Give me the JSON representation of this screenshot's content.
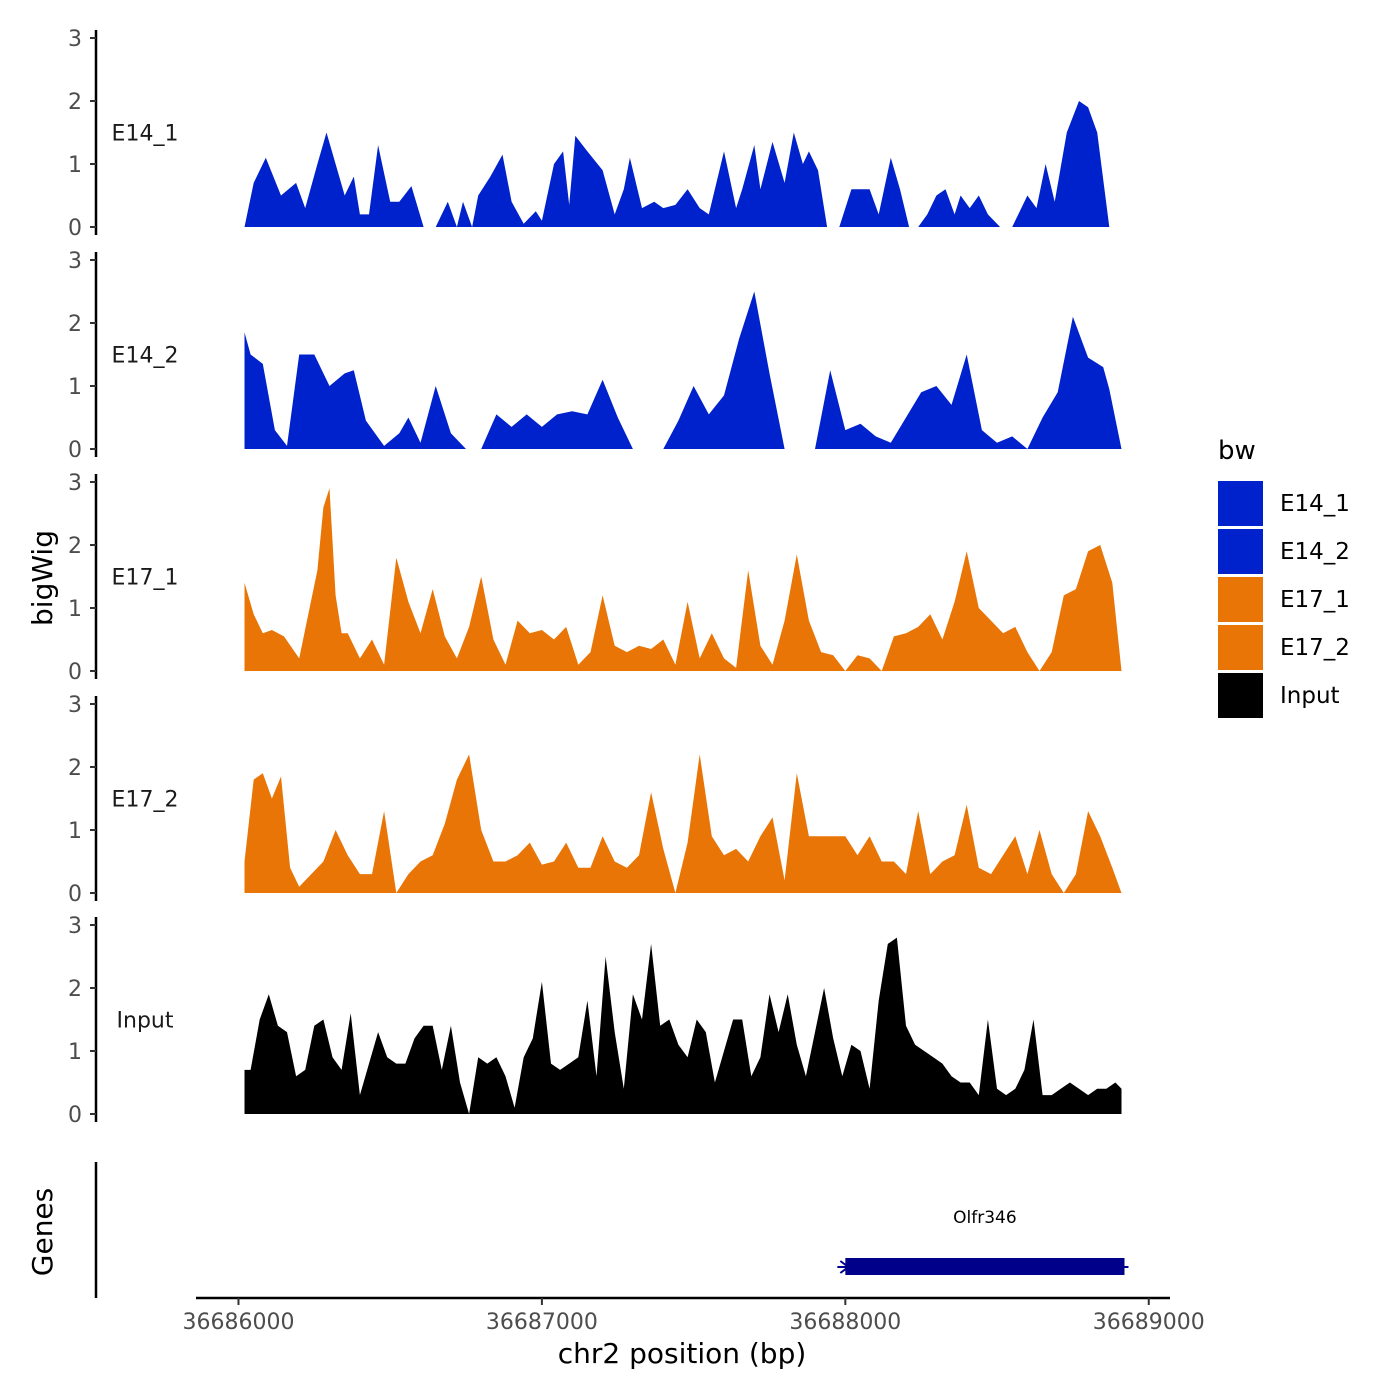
{
  "chart_data": {
    "type": "area",
    "ylabel": "bigWig",
    "xlabel": "chr2 position (bp)",
    "xlim": [
      36685860,
      36689070
    ],
    "ylim": [
      0,
      3
    ],
    "yticks": [
      0,
      1,
      2,
      3
    ],
    "xticks": [
      36686000,
      36687000,
      36688000,
      36689000
    ],
    "xtick_labels": [
      "36686000",
      "36687000",
      "36688000",
      "36689000"
    ],
    "legend": {
      "title": "bw",
      "position": "right",
      "entries": [
        {
          "label": "E14_1",
          "color": "#0022CC"
        },
        {
          "label": "E14_2",
          "color": "#0022CC"
        },
        {
          "label": "E17_1",
          "color": "#E87506"
        },
        {
          "label": "E17_2",
          "color": "#E87506"
        },
        {
          "label": "Input",
          "color": "#000000"
        }
      ]
    },
    "tracks": [
      {
        "name": "E14_1",
        "color": "#0022CC",
        "x": [
          36686020,
          36686050,
          36686090,
          36686140,
          36686190,
          36686220,
          36686260,
          36686290,
          36686320,
          36686350,
          36686380,
          36686400,
          36686430,
          36686460,
          36686500,
          36686530,
          36686570,
          36686610,
          36686650,
          36686690,
          36686720,
          36686740,
          36686770,
          36686790,
          36686830,
          36686870,
          36686900,
          36686940,
          36686980,
          36687000,
          36687040,
          36687070,
          36687090,
          36687110,
          36687150,
          36687200,
          36687240,
          36687270,
          36687290,
          36687330,
          36687370,
          36687400,
          36687440,
          36687480,
          36687520,
          36687550,
          36687600,
          36687640,
          36687660,
          36687700,
          36687720,
          36687760,
          36687800,
          36687830,
          36687860,
          36687880,
          36687910,
          36687940,
          36687980,
          36688020,
          36688050,
          36688080,
          36688110,
          36688150,
          36688180,
          36688210,
          36688240,
          36688270,
          36688300,
          36688330,
          36688360,
          36688380,
          36688410,
          36688440,
          36688470,
          36688510,
          36688550,
          36688600,
          36688630,
          36688660,
          36688690,
          36688730,
          36688770,
          36688800,
          36688830,
          36688870,
          36688890,
          36688910
        ],
        "y": [
          0,
          0.7,
          1.1,
          0.5,
          0.7,
          0.3,
          1.0,
          1.5,
          1.0,
          0.5,
          0.8,
          0.2,
          0.2,
          1.3,
          0.4,
          0.4,
          0.65,
          0,
          0,
          0.4,
          0,
          0.4,
          0,
          0.5,
          0.8,
          1.15,
          0.4,
          0.05,
          0.25,
          0.1,
          1.0,
          1.2,
          0.35,
          1.45,
          1.2,
          0.9,
          0.2,
          0.6,
          1.1,
          0.3,
          0.4,
          0.3,
          0.35,
          0.6,
          0.3,
          0.2,
          1.2,
          0.3,
          0.6,
          1.3,
          0.6,
          1.35,
          0.7,
          1.5,
          1.0,
          1.2,
          0.9,
          0,
          0,
          0.6,
          0.6,
          0.6,
          0.2,
          1.1,
          0.6,
          0,
          0,
          0.2,
          0.5,
          0.6,
          0.2,
          0.5,
          0.3,
          0.5,
          0.2,
          0,
          0,
          0.5,
          0.3,
          1.0,
          0.4,
          1.5,
          2.0,
          1.9,
          1.5,
          0,
          0,
          0
        ],
        "ticks": [
          0,
          1,
          2,
          3
        ]
      },
      {
        "name": "E14_2",
        "color": "#0022CC",
        "x": [
          36686020,
          36686040,
          36686080,
          36686120,
          36686160,
          36686200,
          36686250,
          36686300,
          36686350,
          36686380,
          36686420,
          36686480,
          36686530,
          36686560,
          36686600,
          36686650,
          36686700,
          36686750,
          36686800,
          36686850,
          36686900,
          36686950,
          36687000,
          36687050,
          36687100,
          36687150,
          36687200,
          36687250,
          36687300,
          36687350,
          36687400,
          36687450,
          36687500,
          36687550,
          36687600,
          36687650,
          36687700,
          36687750,
          36687800,
          36687850,
          36687900,
          36687950,
          36688000,
          36688050,
          36688100,
          36688150,
          36688200,
          36688250,
          36688300,
          36688350,
          36688400,
          36688450,
          36688500,
          36688550,
          36688600,
          36688650,
          36688700,
          36688750,
          36688800,
          36688850,
          36688870,
          36688910
        ],
        "y": [
          1.85,
          1.5,
          1.35,
          0.3,
          0.05,
          1.5,
          1.5,
          1.0,
          1.2,
          1.25,
          0.45,
          0.05,
          0.25,
          0.5,
          0.1,
          1.0,
          0.25,
          0,
          0,
          0.55,
          0.35,
          0.55,
          0.35,
          0.55,
          0.6,
          0.55,
          1.1,
          0.5,
          0,
          0,
          0,
          0.45,
          1.0,
          0.55,
          0.85,
          1.75,
          2.5,
          1.2,
          0,
          0,
          0,
          1.25,
          0.3,
          0.4,
          0.2,
          0.1,
          0.5,
          0.9,
          1.0,
          0.7,
          1.5,
          0.3,
          0.1,
          0.2,
          0,
          0.5,
          0.9,
          2.1,
          1.45,
          1.3,
          0.95,
          0
        ],
        "ticks": [
          0,
          1,
          2,
          3
        ]
      },
      {
        "name": "E17_1",
        "color": "#E87506",
        "x": [
          36686020,
          36686050,
          36686080,
          36686110,
          36686150,
          36686200,
          36686230,
          36686260,
          36686280,
          36686300,
          36686320,
          36686340,
          36686360,
          36686400,
          36686440,
          36686480,
          36686520,
          36686560,
          36686600,
          36686640,
          36686680,
          36686720,
          36686760,
          36686800,
          36686840,
          36686880,
          36686920,
          36686960,
          36687000,
          36687040,
          36687080,
          36687120,
          36687160,
          36687200,
          36687240,
          36687280,
          36687320,
          36687360,
          36687400,
          36687440,
          36687480,
          36687520,
          36687560,
          36687600,
          36687640,
          36687680,
          36687720,
          36687760,
          36687800,
          36687840,
          36687880,
          36687920,
          36687960,
          36688000,
          36688040,
          36688080,
          36688120,
          36688160,
          36688200,
          36688240,
          36688280,
          36688320,
          36688360,
          36688400,
          36688440,
          36688480,
          36688520,
          36688560,
          36688600,
          36688640,
          36688680,
          36688720,
          36688760,
          36688800,
          36688840,
          36688880,
          36688910
        ],
        "y": [
          1.4,
          0.9,
          0.6,
          0.65,
          0.55,
          0.2,
          0.9,
          1.6,
          2.6,
          2.9,
          1.2,
          0.6,
          0.6,
          0.2,
          0.5,
          0.1,
          1.8,
          1.1,
          0.6,
          1.3,
          0.55,
          0.2,
          0.7,
          1.5,
          0.5,
          0.1,
          0.8,
          0.6,
          0.65,
          0.5,
          0.7,
          0.1,
          0.3,
          1.2,
          0.4,
          0.3,
          0.4,
          0.35,
          0.5,
          0.1,
          1.1,
          0.2,
          0.6,
          0.2,
          0.05,
          1.6,
          0.4,
          0.1,
          0.8,
          1.85,
          0.8,
          0.3,
          0.25,
          0,
          0.25,
          0.2,
          0,
          0.55,
          0.6,
          0.7,
          0.9,
          0.5,
          1.1,
          1.9,
          1.0,
          0.8,
          0.6,
          0.7,
          0.3,
          0,
          0.3,
          1.2,
          1.3,
          1.9,
          2.0,
          1.4,
          0
        ],
        "ticks": [
          0,
          1,
          2,
          3
        ]
      },
      {
        "name": "E17_2",
        "color": "#E87506",
        "x": [
          36686020,
          36686050,
          36686080,
          36686110,
          36686140,
          36686170,
          36686200,
          36686240,
          36686280,
          36686320,
          36686360,
          36686400,
          36686440,
          36686480,
          36686520,
          36686560,
          36686600,
          36686640,
          36686680,
          36686720,
          36686760,
          36686800,
          36686840,
          36686880,
          36686920,
          36686960,
          36687000,
          36687040,
          36687080,
          36687120,
          36687160,
          36687200,
          36687240,
          36687280,
          36687320,
          36687360,
          36687400,
          36687440,
          36687480,
          36687520,
          36687560,
          36687600,
          36687640,
          36687680,
          36687720,
          36687760,
          36687800,
          36687840,
          36687880,
          36687920,
          36687960,
          36688000,
          36688040,
          36688080,
          36688120,
          36688160,
          36688200,
          36688240,
          36688280,
          36688320,
          36688360,
          36688400,
          36688440,
          36688480,
          36688520,
          36688560,
          36688600,
          36688640,
          36688680,
          36688720,
          36688760,
          36688800,
          36688840,
          36688880,
          36688910
        ],
        "y": [
          0.5,
          1.8,
          1.9,
          1.5,
          1.85,
          0.4,
          0.1,
          0.3,
          0.5,
          1.0,
          0.6,
          0.3,
          0.3,
          1.3,
          0,
          0.3,
          0.5,
          0.6,
          1.1,
          1.8,
          2.2,
          1.0,
          0.5,
          0.5,
          0.6,
          0.8,
          0.45,
          0.5,
          0.8,
          0.4,
          0.4,
          0.9,
          0.5,
          0.4,
          0.6,
          1.6,
          0.7,
          0,
          0.8,
          2.2,
          0.9,
          0.6,
          0.7,
          0.5,
          0.9,
          1.2,
          0.2,
          1.9,
          0.9,
          0.9,
          0.9,
          0.9,
          0.6,
          0.9,
          0.5,
          0.5,
          0.3,
          1.3,
          0.3,
          0.5,
          0.6,
          1.4,
          0.4,
          0.3,
          0.6,
          0.9,
          0.3,
          1.0,
          0.3,
          0,
          0.3,
          1.3,
          0.9,
          0.4,
          0
        ],
        "ticks": [
          0,
          1,
          2,
          3
        ]
      },
      {
        "name": "Input",
        "color": "#000000",
        "x": [
          36686020,
          36686040,
          36686070,
          36686100,
          36686130,
          36686160,
          36686190,
          36686220,
          36686250,
          36686280,
          36686310,
          36686340,
          36686370,
          36686400,
          36686430,
          36686460,
          36686490,
          36686520,
          36686550,
          36686580,
          36686610,
          36686640,
          36686670,
          36686700,
          36686730,
          36686760,
          36686790,
          36686820,
          36686850,
          36686880,
          36686910,
          36686940,
          36686970,
          36687000,
          36687030,
          36687060,
          36687090,
          36687120,
          36687150,
          36687180,
          36687210,
          36687240,
          36687270,
          36687300,
          36687330,
          36687360,
          36687390,
          36687420,
          36687450,
          36687480,
          36687510,
          36687540,
          36687570,
          36687600,
          36687630,
          36687660,
          36687690,
          36687720,
          36687750,
          36687780,
          36687810,
          36687840,
          36687870,
          36687900,
          36687930,
          36687960,
          36687990,
          36688020,
          36688050,
          36688080,
          36688110,
          36688140,
          36688170,
          36688200,
          36688230,
          36688260,
          36688290,
          36688320,
          36688350,
          36688380,
          36688410,
          36688440,
          36688470,
          36688500,
          36688530,
          36688560,
          36688590,
          36688620,
          36688650,
          36688680,
          36688710,
          36688740,
          36688770,
          36688800,
          36688830,
          36688860,
          36688890,
          36688910
        ],
        "y": [
          0.7,
          0.7,
          1.5,
          1.9,
          1.4,
          1.3,
          0.6,
          0.7,
          1.4,
          1.5,
          0.9,
          0.7,
          1.6,
          0.3,
          0.8,
          1.3,
          0.9,
          0.8,
          0.8,
          1.2,
          1.4,
          1.4,
          0.7,
          1.4,
          0.5,
          0,
          0.9,
          0.8,
          0.9,
          0.6,
          0.1,
          0.9,
          1.2,
          2.1,
          0.8,
          0.7,
          0.8,
          0.9,
          1.8,
          0.6,
          2.5,
          1.3,
          0.4,
          1.9,
          1.5,
          2.7,
          1.4,
          1.5,
          1.1,
          0.9,
          1.5,
          1.3,
          0.5,
          1.0,
          1.5,
          1.5,
          0.6,
          0.9,
          1.9,
          1.3,
          1.9,
          1.1,
          0.6,
          1.3,
          2.0,
          1.2,
          0.6,
          1.1,
          1.0,
          0.4,
          1.8,
          2.7,
          2.8,
          1.4,
          1.1,
          1.0,
          0.9,
          0.8,
          0.6,
          0.5,
          0.5,
          0.3,
          1.5,
          0.4,
          0.3,
          0.4,
          0.7,
          1.5,
          0.3,
          0.3,
          0.4,
          0.5,
          0.4,
          0.3,
          0.4,
          0.4,
          0.5,
          0.4
        ],
        "ticks": [
          0,
          1,
          2,
          3
        ]
      }
    ],
    "genes_track": {
      "ylabel": "Genes",
      "genes": [
        {
          "name": "Olfr346",
          "start": 36688000,
          "end": 36688920,
          "strand": "-",
          "color": "#00008B"
        }
      ]
    }
  }
}
